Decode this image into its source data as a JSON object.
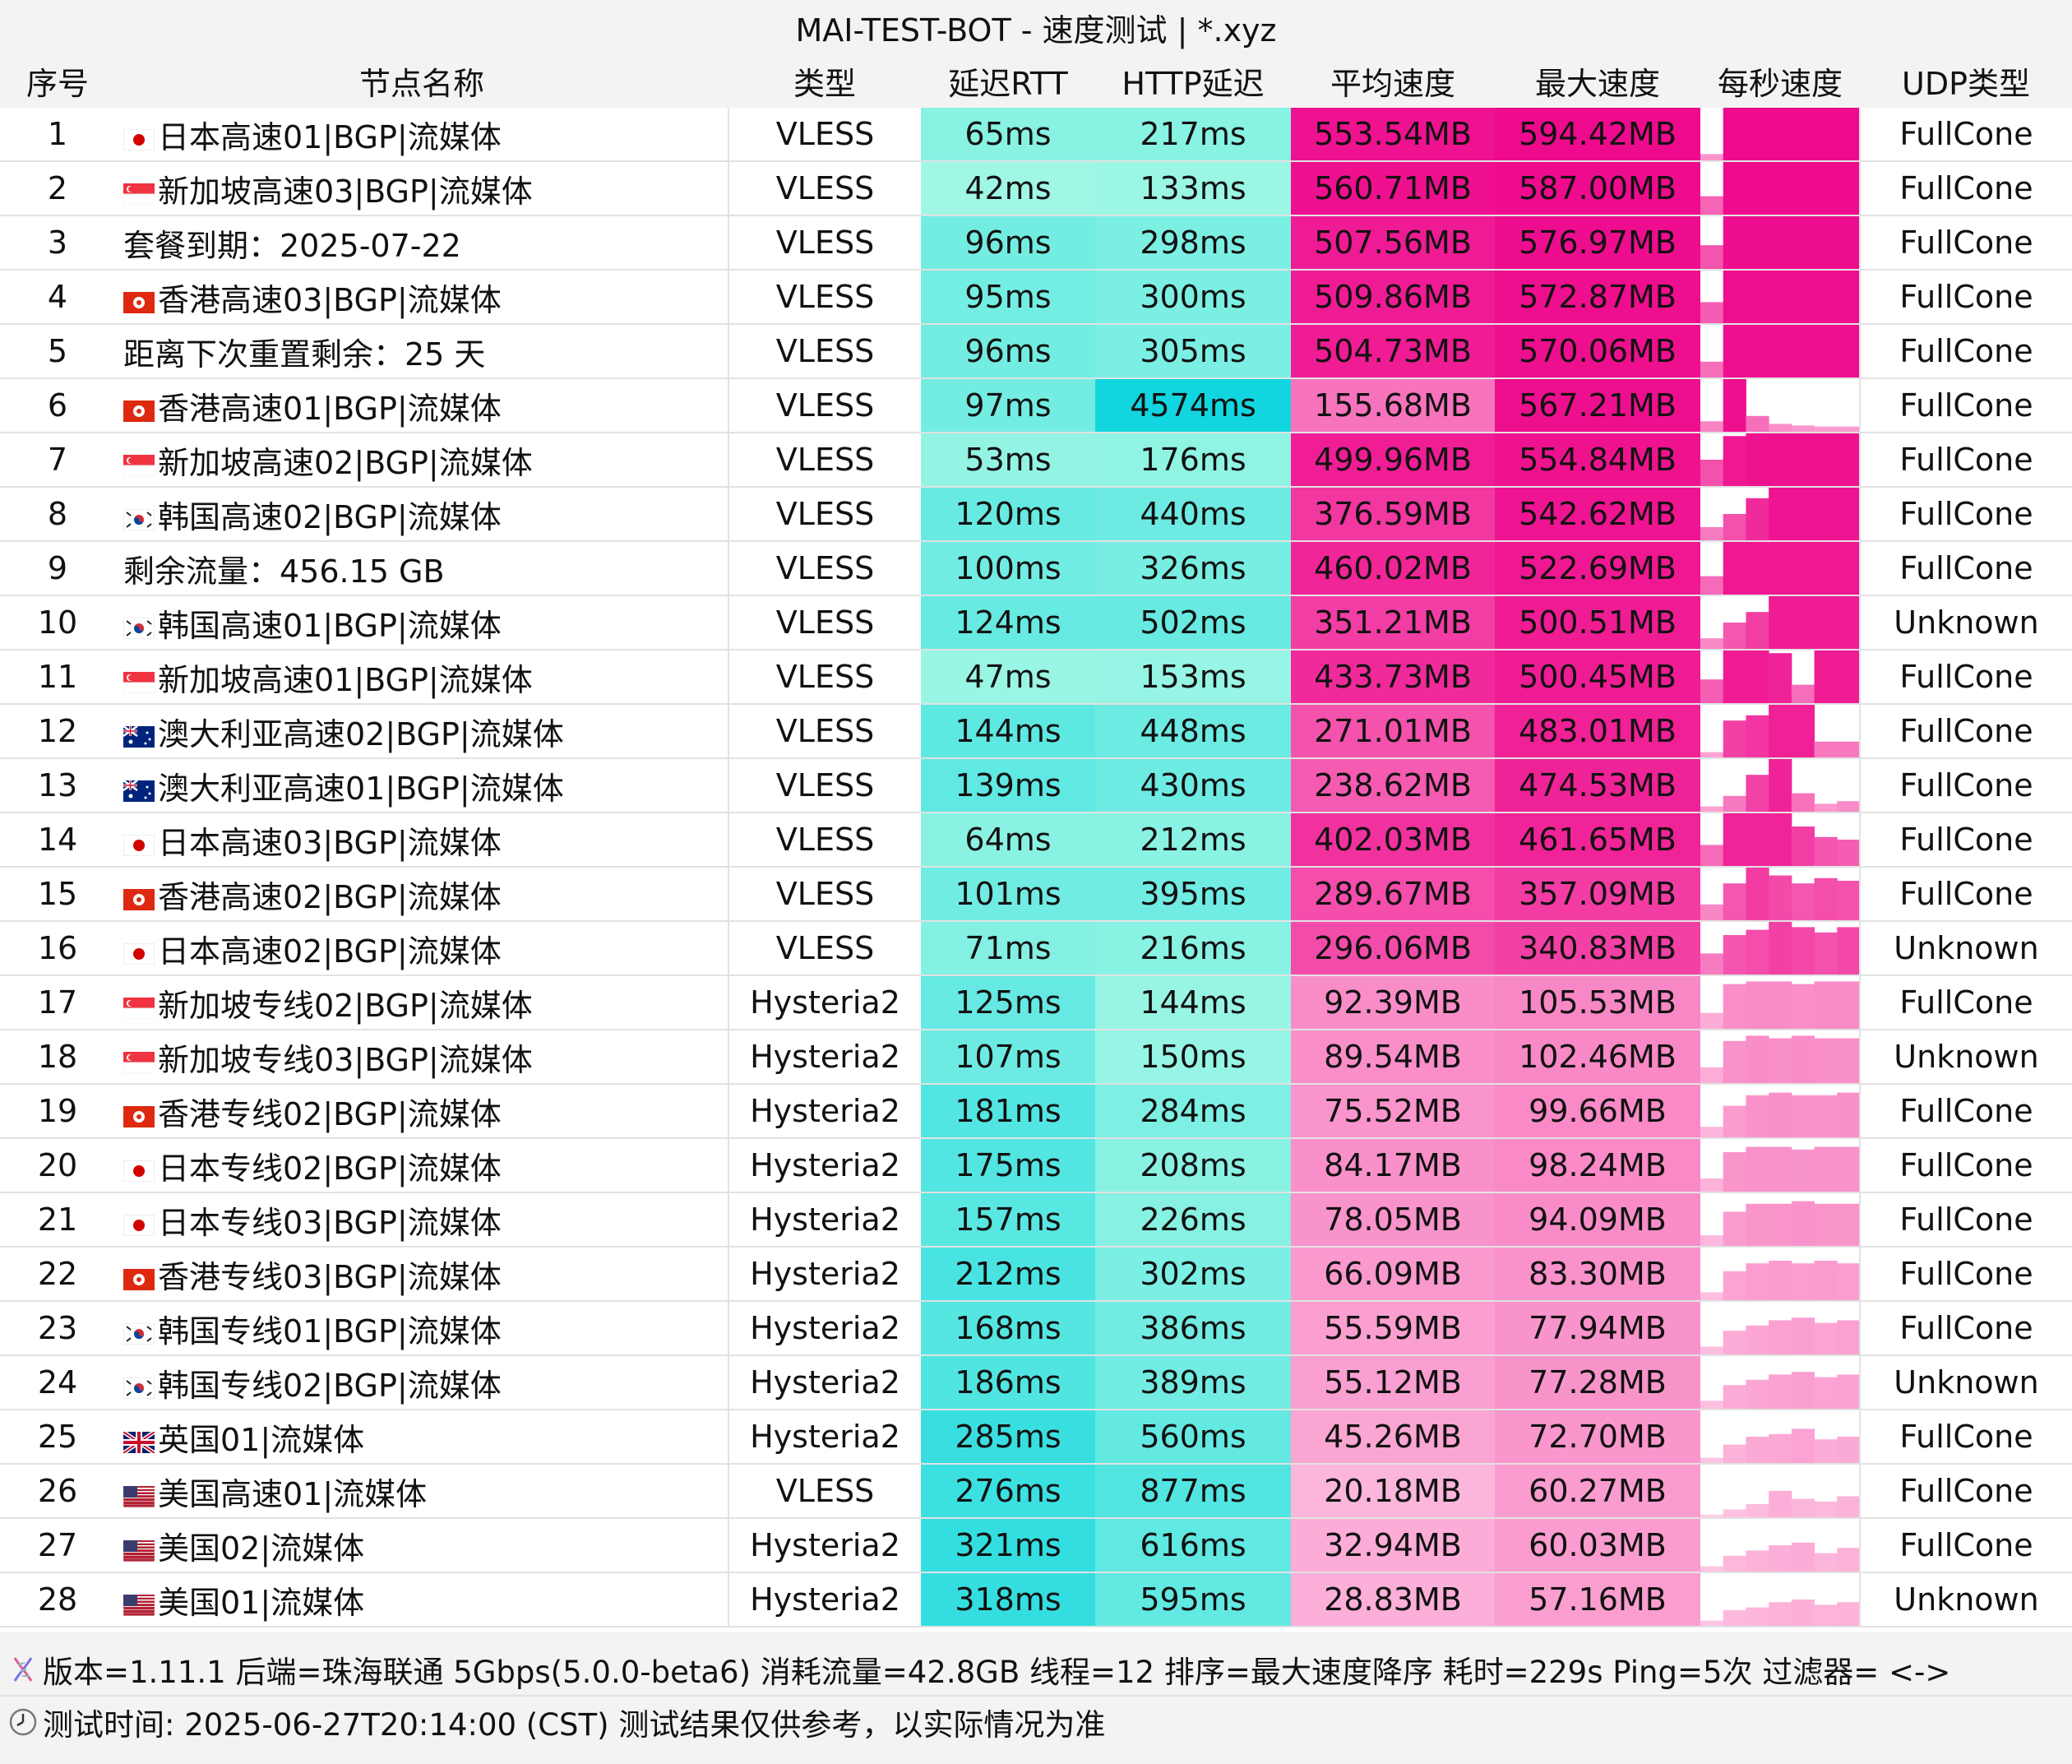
{
  "title": "MAI-TEST-BOT - 速度测试 | *.xyz",
  "headers": [
    "序号",
    "节点名称",
    "类型",
    "延迟RTT",
    "HTTP延迟",
    "平均速度",
    "最大速度",
    "每秒速度",
    "UDP类型"
  ],
  "colors": {
    "header_bg": "#f3f3f3",
    "teal_light": "#9ff7e4",
    "teal_dark": "#12d6df",
    "pink_light": "#ffd6ea",
    "pink_dark": "#ee0a8c"
  },
  "rows": [
    {
      "idx": "1",
      "flag": "jp",
      "name": "日本高速01|BGP|流媒体",
      "type": "VLESS",
      "rtt": "65ms",
      "http": "217ms",
      "avg": "553.54MB",
      "max": "594.42MB",
      "udp": "FullCone",
      "spark": [
        0.12,
        1,
        1,
        1,
        1,
        1,
        1
      ]
    },
    {
      "idx": "2",
      "flag": "sg",
      "name": "新加坡高速03|BGP|流媒体",
      "type": "VLESS",
      "rtt": "42ms",
      "http": "133ms",
      "avg": "560.71MB",
      "max": "587.00MB",
      "udp": "FullCone",
      "spark": [
        0.35,
        1,
        1,
        1,
        1,
        1,
        1
      ]
    },
    {
      "idx": "3",
      "flag": "",
      "name": "套餐到期：2025-07-22",
      "type": "VLESS",
      "rtt": "96ms",
      "http": "298ms",
      "avg": "507.56MB",
      "max": "576.97MB",
      "udp": "FullCone",
      "spark": [
        0.45,
        1,
        1,
        1,
        1,
        1,
        1
      ]
    },
    {
      "idx": "4",
      "flag": "hk",
      "name": "香港高速03|BGP|流媒体",
      "type": "VLESS",
      "rtt": "95ms",
      "http": "300ms",
      "avg": "509.86MB",
      "max": "572.87MB",
      "udp": "FullCone",
      "spark": [
        0.4,
        1,
        1,
        1,
        1,
        1,
        1
      ]
    },
    {
      "idx": "5",
      "flag": "",
      "name": "距离下次重置剩余：25 天",
      "type": "VLESS",
      "rtt": "96ms",
      "http": "305ms",
      "avg": "504.73MB",
      "max": "570.06MB",
      "udp": "FullCone",
      "spark": [
        0.3,
        1,
        1,
        1,
        1,
        1,
        1
      ]
    },
    {
      "idx": "6",
      "flag": "hk",
      "name": "香港高速01|BGP|流媒体",
      "type": "VLESS",
      "rtt": "97ms",
      "http": "4574ms",
      "avg": "155.68MB",
      "max": "567.21MB",
      "udp": "FullCone",
      "spark": [
        0.2,
        1,
        0.3,
        0.15,
        0.12,
        0.1,
        0.1
      ]
    },
    {
      "idx": "7",
      "flag": "sg",
      "name": "新加坡高速02|BGP|流媒体",
      "type": "VLESS",
      "rtt": "53ms",
      "http": "176ms",
      "avg": "499.96MB",
      "max": "554.84MB",
      "udp": "FullCone",
      "spark": [
        0.5,
        0.95,
        1,
        1,
        1,
        1,
        1
      ]
    },
    {
      "idx": "8",
      "flag": "kr",
      "name": "韩国高速02|BGP|流媒体",
      "type": "VLESS",
      "rtt": "120ms",
      "http": "440ms",
      "avg": "376.59MB",
      "max": "542.62MB",
      "udp": "FullCone",
      "spark": [
        0.25,
        0.5,
        0.8,
        1,
        1,
        1,
        1
      ]
    },
    {
      "idx": "9",
      "flag": "",
      "name": "剩余流量：456.15 GB",
      "type": "VLESS",
      "rtt": "100ms",
      "http": "326ms",
      "avg": "460.02MB",
      "max": "522.69MB",
      "udp": "FullCone",
      "spark": [
        0.35,
        1,
        1,
        1,
        1,
        1,
        1
      ]
    },
    {
      "idx": "10",
      "flag": "kr",
      "name": "韩国高速01|BGP|流媒体",
      "type": "VLESS",
      "rtt": "124ms",
      "http": "502ms",
      "avg": "351.21MB",
      "max": "500.51MB",
      "udp": "Unknown",
      "spark": [
        0.2,
        0.5,
        0.7,
        1,
        1,
        1,
        1
      ]
    },
    {
      "idx": "11",
      "flag": "sg",
      "name": "新加坡高速01|BGP|流媒体",
      "type": "VLESS",
      "rtt": "47ms",
      "http": "153ms",
      "avg": "433.73MB",
      "max": "500.45MB",
      "udp": "FullCone",
      "spark": [
        0.45,
        1,
        1,
        0.95,
        0.35,
        1,
        1
      ]
    },
    {
      "idx": "12",
      "flag": "au",
      "name": "澳大利亚高速02|BGP|流媒体",
      "type": "VLESS",
      "rtt": "144ms",
      "http": "448ms",
      "avg": "271.01MB",
      "max": "483.01MB",
      "udp": "FullCone",
      "spark": [
        0.1,
        0.7,
        0.8,
        1,
        1,
        0.3,
        0.3
      ]
    },
    {
      "idx": "13",
      "flag": "au",
      "name": "澳大利亚高速01|BGP|流媒体",
      "type": "VLESS",
      "rtt": "139ms",
      "http": "430ms",
      "avg": "238.62MB",
      "max": "474.53MB",
      "udp": "FullCone",
      "spark": [
        0.1,
        0.3,
        0.7,
        1,
        0.35,
        0.15,
        0.2
      ]
    },
    {
      "idx": "14",
      "flag": "jp",
      "name": "日本高速03|BGP|流媒体",
      "type": "VLESS",
      "rtt": "64ms",
      "http": "212ms",
      "avg": "402.03MB",
      "max": "461.65MB",
      "udp": "FullCone",
      "spark": [
        0.4,
        1,
        1,
        1,
        0.75,
        0.55,
        0.5
      ]
    },
    {
      "idx": "15",
      "flag": "hk",
      "name": "香港高速02|BGP|流媒体",
      "type": "VLESS",
      "rtt": "101ms",
      "http": "395ms",
      "avg": "289.67MB",
      "max": "357.09MB",
      "udp": "FullCone",
      "spark": [
        0.3,
        0.7,
        1,
        0.85,
        0.7,
        0.8,
        0.75
      ]
    },
    {
      "idx": "16",
      "flag": "jp",
      "name": "日本高速02|BGP|流媒体",
      "type": "VLESS",
      "rtt": "71ms",
      "http": "216ms",
      "avg": "296.06MB",
      "max": "340.83MB",
      "udp": "Unknown",
      "spark": [
        0.4,
        0.75,
        0.85,
        1,
        0.9,
        0.8,
        0.9
      ]
    },
    {
      "idx": "17",
      "flag": "sg",
      "name": "新加坡专线02|BGP|流媒体",
      "type": "Hysteria2",
      "rtt": "125ms",
      "http": "144ms",
      "avg": "92.39MB",
      "max": "105.53MB",
      "udp": "FullCone",
      "spark": [
        0.3,
        0.85,
        0.9,
        0.9,
        0.85,
        0.9,
        0.9
      ]
    },
    {
      "idx": "18",
      "flag": "sg",
      "name": "新加坡专线03|BGP|流媒体",
      "type": "Hysteria2",
      "rtt": "107ms",
      "http": "150ms",
      "avg": "89.54MB",
      "max": "102.46MB",
      "udp": "Unknown",
      "spark": [
        0.3,
        0.8,
        0.9,
        0.85,
        0.9,
        0.85,
        0.85
      ]
    },
    {
      "idx": "19",
      "flag": "hk",
      "name": "香港专线02|BGP|流媒体",
      "type": "Hysteria2",
      "rtt": "181ms",
      "http": "284ms",
      "avg": "75.52MB",
      "max": "99.66MB",
      "udp": "FullCone",
      "spark": [
        0.2,
        0.6,
        0.8,
        0.85,
        0.8,
        0.8,
        0.85
      ]
    },
    {
      "idx": "20",
      "flag": "jp",
      "name": "日本专线02|BGP|流媒体",
      "type": "Hysteria2",
      "rtt": "175ms",
      "http": "208ms",
      "avg": "84.17MB",
      "max": "98.24MB",
      "udp": "FullCone",
      "spark": [
        0.25,
        0.75,
        0.85,
        0.85,
        0.8,
        0.85,
        0.85
      ]
    },
    {
      "idx": "21",
      "flag": "jp",
      "name": "日本专线03|BGP|流媒体",
      "type": "Hysteria2",
      "rtt": "157ms",
      "http": "226ms",
      "avg": "78.05MB",
      "max": "94.09MB",
      "udp": "FullCone",
      "spark": [
        0.2,
        0.65,
        0.8,
        0.8,
        0.85,
        0.8,
        0.8
      ]
    },
    {
      "idx": "22",
      "flag": "hk",
      "name": "香港专线03|BGP|流媒体",
      "type": "Hysteria2",
      "rtt": "212ms",
      "http": "302ms",
      "avg": "66.09MB",
      "max": "83.30MB",
      "udp": "FullCone",
      "spark": [
        0.15,
        0.55,
        0.7,
        0.75,
        0.7,
        0.75,
        0.7
      ]
    },
    {
      "idx": "23",
      "flag": "kr",
      "name": "韩国专线01|BGP|流媒体",
      "type": "Hysteria2",
      "rtt": "168ms",
      "http": "386ms",
      "avg": "55.59MB",
      "max": "77.94MB",
      "udp": "FullCone",
      "spark": [
        0.15,
        0.45,
        0.55,
        0.65,
        0.7,
        0.6,
        0.65
      ]
    },
    {
      "idx": "24",
      "flag": "kr",
      "name": "韩国专线02|BGP|流媒体",
      "type": "Hysteria2",
      "rtt": "186ms",
      "http": "389ms",
      "avg": "55.12MB",
      "max": "77.28MB",
      "udp": "Unknown",
      "spark": [
        0.15,
        0.45,
        0.55,
        0.65,
        0.7,
        0.6,
        0.65
      ]
    },
    {
      "idx": "25",
      "flag": "uk",
      "name": "英国01|流媒体",
      "type": "Hysteria2",
      "rtt": "285ms",
      "http": "560ms",
      "avg": "45.26MB",
      "max": "72.70MB",
      "udp": "FullCone",
      "spark": [
        0.1,
        0.35,
        0.5,
        0.55,
        0.65,
        0.45,
        0.5
      ]
    },
    {
      "idx": "26",
      "flag": "us",
      "name": "美国高速01|流媒体",
      "type": "VLESS",
      "rtt": "276ms",
      "http": "877ms",
      "avg": "20.18MB",
      "max": "60.27MB",
      "udp": "FullCone",
      "spark": [
        0.05,
        0.15,
        0.25,
        0.5,
        0.35,
        0.3,
        0.4
      ]
    },
    {
      "idx": "27",
      "flag": "us",
      "name": "美国02|流媒体",
      "type": "Hysteria2",
      "rtt": "321ms",
      "http": "616ms",
      "avg": "32.94MB",
      "max": "60.03MB",
      "udp": "FullCone",
      "spark": [
        0.1,
        0.3,
        0.4,
        0.5,
        0.55,
        0.35,
        0.45
      ]
    },
    {
      "idx": "28",
      "flag": "us",
      "name": "美国01|流媒体",
      "type": "Hysteria2",
      "rtt": "318ms",
      "http": "595ms",
      "avg": "28.83MB",
      "max": "57.16MB",
      "udp": "Unknown",
      "spark": [
        0.1,
        0.3,
        0.35,
        0.45,
        0.5,
        0.4,
        0.45
      ]
    }
  ],
  "footer": {
    "line1": "版本=1.11.1  后端=珠海联通 5Gbps(5.0.0-beta6) 消耗流量=42.8GB  线程=12  排序=最大速度降序  耗时=229s  Ping=5次  过滤器= <->",
    "line2": "测试时间: 2025-06-27T20:14:00 (CST)  测试结果仅供参考，以实际情况为准",
    "line1_icon": "dna-icon",
    "line2_icon": "clock-icon"
  }
}
